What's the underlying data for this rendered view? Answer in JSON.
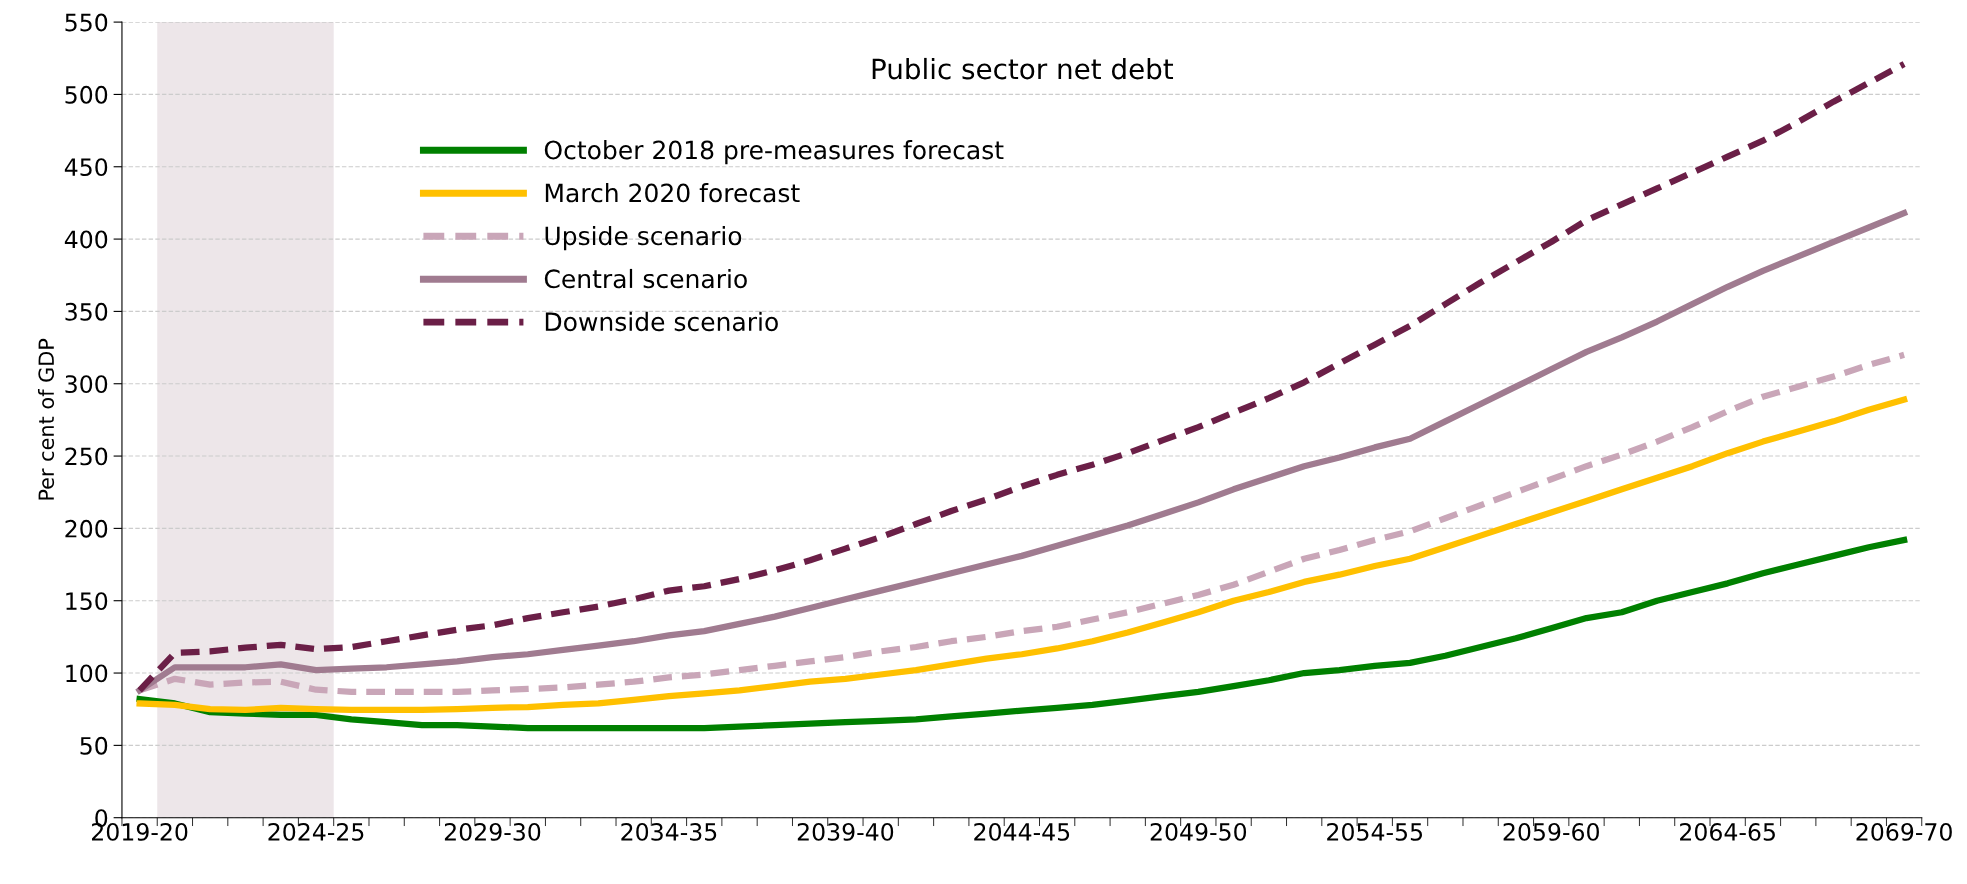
{
  "chart_data": {
    "type": "line",
    "title": "Public sector net debt",
    "ylabel": "Per cent of GDP",
    "categories": [
      "2019-20",
      null,
      null,
      null,
      null,
      "2024-25",
      null,
      null,
      null,
      null,
      "2029-30",
      null,
      null,
      null,
      null,
      "2034-35",
      null,
      null,
      null,
      null,
      "2039-40",
      null,
      null,
      null,
      null,
      "2044-45",
      null,
      null,
      null,
      null,
      "2049-50",
      null,
      null,
      null,
      null,
      "2054-55",
      null,
      null,
      null,
      null,
      "2059-60",
      null,
      null,
      null,
      null,
      "2064-65",
      null,
      null,
      null,
      null,
      "2069-70"
    ],
    "series": [
      {
        "name": "October 2018 pre-measures forecast",
        "color": "#008000",
        "line_style": "solid",
        "values": [
          82,
          79,
          73,
          72,
          71,
          71,
          68,
          66,
          64,
          64,
          63,
          62,
          62,
          62,
          62,
          62,
          62,
          63,
          64,
          65,
          66,
          67,
          68,
          70,
          72,
          74,
          76,
          78,
          81,
          84,
          87,
          91,
          95,
          100,
          102,
          105,
          107,
          112,
          118,
          124,
          131,
          138,
          142,
          150,
          156,
          162,
          169,
          175,
          181,
          187,
          192
        ]
      },
      {
        "name": "March 2020 forecast",
        "color": "#ffc000",
        "line_style": "solid",
        "values": [
          79,
          78,
          75,
          74.5,
          76,
          75,
          74.5,
          74.5,
          74.5,
          75,
          76,
          76.5,
          78,
          79,
          81.5,
          84,
          86,
          88,
          91,
          94,
          96,
          99,
          102,
          106,
          110,
          113,
          117,
          122,
          128,
          135,
          142,
          150,
          156,
          163,
          168,
          174,
          179,
          187,
          195,
          203,
          211,
          219,
          227,
          235,
          243,
          252,
          260,
          267,
          274,
          282,
          289
        ]
      },
      {
        "name": "Upside scenario",
        "color": "#c9a6b8",
        "line_style": "dashed",
        "values": [
          88,
          96,
          92,
          93.5,
          94,
          88.5,
          87,
          87,
          87,
          87,
          88,
          89,
          90,
          92,
          94,
          97,
          99,
          102,
          105,
          108,
          111,
          115,
          118,
          122,
          125,
          129,
          132,
          137,
          142,
          148,
          154,
          161,
          170,
          179,
          185,
          192,
          198,
          207,
          216,
          225,
          234,
          243,
          251,
          260,
          270,
          281,
          291,
          298,
          305,
          313,
          320
        ]
      },
      {
        "name": "Central scenario",
        "color": "#a07b90",
        "line_style": "solid",
        "values": [
          88,
          104,
          104,
          104,
          106,
          102,
          103,
          104,
          106,
          108,
          111,
          113,
          116,
          119,
          122,
          126,
          129,
          134,
          139,
          145,
          151,
          157,
          163,
          169,
          175,
          181,
          188,
          195,
          202,
          210,
          218,
          227,
          235,
          243,
          249,
          256,
          262,
          274,
          286,
          298,
          310,
          322,
          332,
          343,
          355,
          367,
          378,
          388,
          398,
          408,
          418
        ]
      },
      {
        "name": "Downside scenario",
        "color": "#6b1f47",
        "line_style": "dashed",
        "values": [
          88,
          114,
          115,
          117.5,
          119.5,
          116.5,
          118,
          122,
          126,
          130,
          133,
          138,
          142,
          146,
          151,
          157,
          160,
          165,
          171,
          178,
          186,
          194,
          203,
          212,
          220,
          229,
          237,
          244,
          252,
          261,
          270,
          280,
          290,
          301,
          314,
          327,
          340,
          355,
          370,
          384,
          398,
          413,
          424,
          435,
          446,
          457,
          468,
          481,
          495,
          508,
          521
        ]
      }
    ],
    "ylim": [
      0,
      550
    ],
    "yticks": [
      0,
      50,
      100,
      150,
      200,
      250,
      300,
      350,
      400,
      450,
      500,
      550
    ],
    "bands": [
      {
        "axis": "x",
        "from": "2019-20",
        "to": "2024-25",
        "color": "#ede6e9"
      }
    ],
    "grid": "y",
    "legend": "top left"
  }
}
